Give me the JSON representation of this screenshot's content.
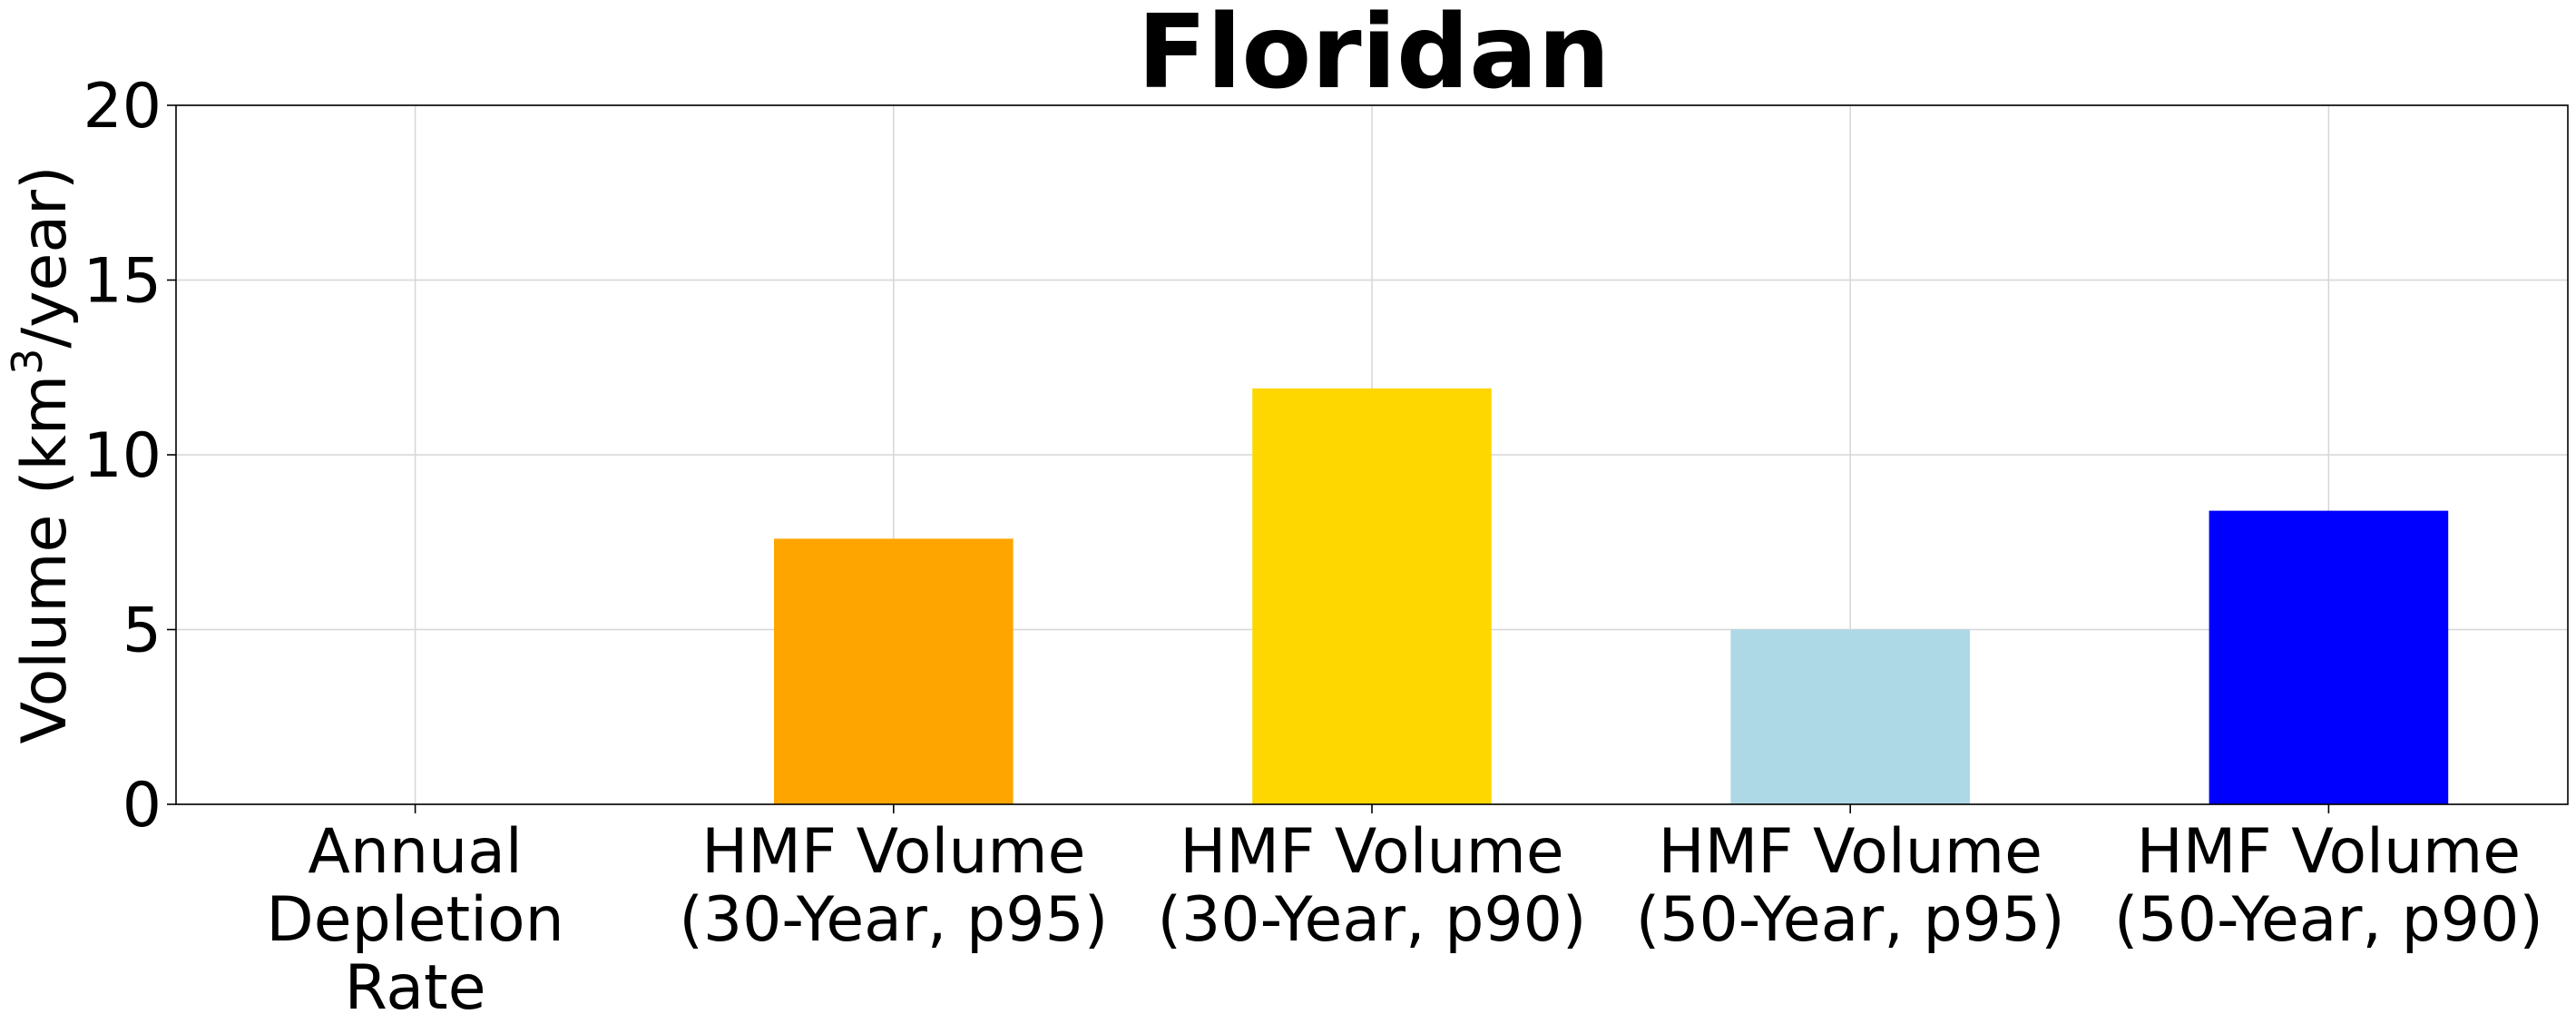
{
  "chart_data": {
    "type": "bar",
    "title": "Floridan",
    "xlabel": "",
    "ylabel": "Volume (km³/year)",
    "ylabel_parts": {
      "prefix": "Volume (km",
      "superscript": "3",
      "suffix": "/year)"
    },
    "categories": [
      [
        "Annual",
        "Depletion",
        "Rate"
      ],
      [
        "HMF Volume",
        "(30-Year, p95)"
      ],
      [
        "HMF Volume",
        "(30-Year, p90)"
      ],
      [
        "HMF Volume",
        "(50-Year, p95)"
      ],
      [
        "HMF Volume",
        "(50-Year, p90)"
      ]
    ],
    "values": [
      0,
      7.6,
      11.9,
      5.0,
      8.4
    ],
    "colors": [
      "#ffa500",
      "#ffa500",
      "#ffd700",
      "#add8e6",
      "#0000ff"
    ],
    "ylim": [
      0,
      20
    ],
    "yticks": [
      0,
      5,
      10,
      15,
      20
    ],
    "grid": true,
    "legend": "none"
  }
}
